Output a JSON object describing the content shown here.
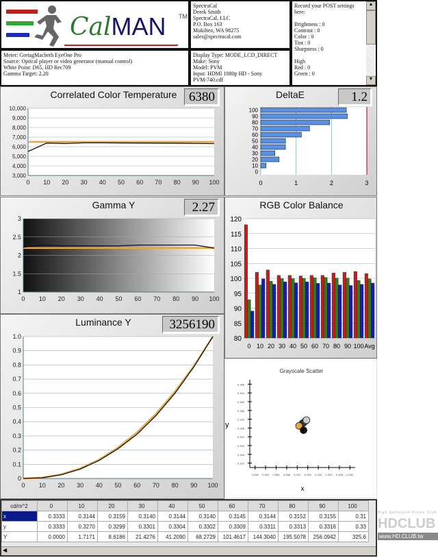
{
  "logo": {
    "text_cal": "Cal",
    "text_man": "MAN",
    "tm": "TM"
  },
  "meter_info": [
    "Meter: GretagMacbeth EyeOne Pro",
    "Source: Optical player or video generator (manual control)",
    "White Point: D65, HD Rec709",
    "Gamma Target: 2.20"
  ],
  "contact": [
    "SpectraCal",
    "Derek Smith",
    "SpectraCal, LLC",
    "P.O. Box 163",
    "Mukilteo, WA 98275",
    "sales@spectracal.com"
  ],
  "display": [
    "Display Type: MODE_LCD_DIRECT",
    "Make: Sony",
    "Model: PVM",
    "Input: HDMI 1080p HD    -    Sony",
    "PVM-740.cdf"
  ],
  "post": [
    "Record your POST settings here:",
    "",
    "Brightness : 0",
    "Contrast    : 0",
    "Color         : 0",
    "Tint           : 0",
    "Sharpness : 0",
    "",
    "High",
    "Red    : 0",
    "Green : 0"
  ],
  "colors": {
    "red": "#c0201c",
    "green": "#2f7a22",
    "blue": "#1020b0",
    "bar": "#5b8fe0",
    "measured": "#111111",
    "target": "#e8a640"
  },
  "chart_data": [
    {
      "id": "cct",
      "type": "line",
      "title": "Correlated Color Temperature",
      "readout": "6380",
      "x": [
        0,
        10,
        20,
        30,
        40,
        50,
        60,
        70,
        80,
        90,
        100
      ],
      "series": [
        {
          "name": "measured",
          "values": [
            5500,
            6380,
            6330,
            6400,
            6400,
            6390,
            6380,
            6370,
            6360,
            6340,
            6320
          ]
        },
        {
          "name": "target",
          "values": [
            6504,
            6504,
            6504,
            6504,
            6504,
            6504,
            6504,
            6504,
            6504,
            6504,
            6504
          ]
        }
      ],
      "ylim": [
        3000,
        10000
      ],
      "yticks": [
        "3,000",
        "4,000",
        "5,000",
        "6,000",
        "7,000",
        "8,000",
        "9,000",
        "10,000"
      ],
      "xticks": [
        "0",
        "10",
        "20",
        "30",
        "40",
        "50",
        "60",
        "70",
        "80",
        "90",
        "100"
      ]
    },
    {
      "id": "deltae",
      "type": "bar",
      "title": "DeltaE",
      "readout": "1.2",
      "categories": [
        "0",
        "10",
        "20",
        "30",
        "40",
        "50",
        "60",
        "70",
        "80",
        "90",
        "100"
      ],
      "values": [
        0,
        0.15,
        0.52,
        0.4,
        0.7,
        0.7,
        1.15,
        1.38,
        1.95,
        2.45,
        2.42
      ],
      "xlim": [
        0,
        3
      ],
      "xticks": [
        "0",
        "1",
        "2",
        "3"
      ]
    },
    {
      "id": "gamma",
      "type": "line",
      "title": "Gamma Y",
      "readout": "2.27",
      "x": [
        0,
        10,
        20,
        30,
        40,
        50,
        60,
        70,
        80,
        90,
        100
      ],
      "series": [
        {
          "name": "measured",
          "values": [
            2.22,
            2.28,
            2.26,
            2.26,
            2.26,
            2.26,
            2.28,
            2.28,
            2.28,
            2.28,
            2.2
          ]
        },
        {
          "name": "target",
          "values": [
            2.2,
            2.2,
            2.2,
            2.2,
            2.2,
            2.2,
            2.2,
            2.2,
            2.2,
            2.2,
            2.2
          ]
        }
      ],
      "ylim": [
        1,
        3
      ],
      "yticks": [
        "1",
        "1.5",
        "2",
        "2.5",
        "3"
      ],
      "xticks": [
        "0",
        "10",
        "20",
        "30",
        "40",
        "50",
        "60",
        "70",
        "80",
        "90",
        "100"
      ]
    },
    {
      "id": "rgb",
      "type": "bar",
      "title": "RGB Color Balance",
      "categories": [
        "0",
        "10",
        "20",
        "30",
        "40",
        "50",
        "60",
        "70",
        "80",
        "90",
        "100",
        "Avg"
      ],
      "series": [
        {
          "name": "Red",
          "values": [
            118,
            102,
            102.8,
            101,
            101,
            100.8,
            101,
            101,
            101.8,
            102,
            102.3,
            101.6
          ]
        },
        {
          "name": "Green",
          "values": [
            92.8,
            97.8,
            99,
            99.9,
            99.9,
            100,
            100.2,
            100.3,
            100.1,
            100.1,
            99.3,
            99.8
          ]
        },
        {
          "name": "Blue",
          "values": [
            89,
            99.8,
            98,
            98.8,
            98.5,
            98.8,
            98.3,
            98.4,
            97.8,
            97.6,
            98,
            98.4
          ]
        }
      ],
      "ylim": [
        80,
        120
      ],
      "yticks": [
        "80",
        "85",
        "90",
        "95",
        "100",
        "105",
        "110",
        "115",
        "120"
      ]
    },
    {
      "id": "lum",
      "type": "line",
      "title": "Luminance Y",
      "readout": "3256190",
      "x": [
        0,
        10,
        20,
        30,
        40,
        50,
        60,
        70,
        80,
        90,
        100
      ],
      "series": [
        {
          "name": "measured",
          "values": [
            0,
            0.005,
            0.026,
            0.066,
            0.127,
            0.21,
            0.312,
            0.443,
            0.6,
            0.787,
            1
          ]
        },
        {
          "name": "target",
          "values": [
            0,
            0.006,
            0.029,
            0.071,
            0.133,
            0.218,
            0.325,
            0.456,
            0.612,
            0.793,
            1
          ]
        }
      ],
      "ylim": [
        0,
        1
      ],
      "yticks": [
        "0",
        "0.1",
        "0.2",
        "0.3",
        "0.4",
        "0.5",
        "0.6",
        "0.7",
        "0.8",
        "0.9",
        "1.0"
      ],
      "xticks": [
        "0",
        "10",
        "20",
        "30",
        "40",
        "50",
        "60",
        "70",
        "80",
        "90",
        "100"
      ]
    },
    {
      "id": "scatter",
      "type": "scatter",
      "title": "Grayscale Scatter",
      "xlabel": "x",
      "ylabel": "y",
      "xlim": [
        0.294,
        0.334
      ],
      "ylim": [
        0.31,
        0.35
      ],
      "xticks": [
        "0.296",
        "0.300",
        "0.304",
        "0.308",
        "0.312",
        "0.316",
        "0.320",
        "0.324",
        "0.328",
        "0.332"
      ],
      "yticks": [
        "0.312",
        "0.316",
        "0.320",
        "0.324",
        "0.328",
        "0.332",
        "0.336",
        "0.340",
        "0.344",
        "0.348"
      ],
      "points": [
        {
          "x": 0.314,
          "y": 0.3301,
          "color": "#111111"
        },
        {
          "x": 0.3144,
          "y": 0.3304,
          "color": "#333333"
        },
        {
          "x": 0.3152,
          "y": 0.3313,
          "color": "#888888"
        },
        {
          "x": 0.3155,
          "y": 0.3316,
          "color": "#cccccc"
        },
        {
          "x": 0.3127,
          "y": 0.329,
          "color": "#e8a640"
        },
        {
          "x": 0.3144,
          "y": 0.327,
          "color": "#111111"
        }
      ]
    }
  ],
  "table": {
    "header": [
      "cd/m^2",
      "0",
      "10",
      "20",
      "30",
      "40",
      "50",
      "60",
      "70",
      "80",
      "90",
      "100"
    ],
    "rows": [
      {
        "label": "x",
        "values": [
          "0.3333",
          "0.3144",
          "0.3159",
          "0.3140",
          "0.3144",
          "0.3140",
          "0.3145",
          "0.3144",
          "0.3152",
          "0.3155",
          "0.31"
        ]
      },
      {
        "label": "y",
        "values": [
          "0.3333",
          "0.3270",
          "0.3299",
          "0.3301",
          "0.3304",
          "0.3302",
          "0.3309",
          "0.3311",
          "0.3313",
          "0.3316",
          "0.33"
        ]
      },
      {
        "label": "Y",
        "values": [
          "0.0000",
          "1.7171",
          "8.6186",
          "21.4276",
          "41.2090",
          "68.2729",
          "101.4617",
          "144.3040",
          "195.5078",
          "256.0942",
          "325.6"
        ]
      }
    ]
  },
  "watermark": {
    "text": "HDCLUB",
    "url": "www.HD.CLUB.tw",
    "tagline": "High Definition Vision Club"
  }
}
